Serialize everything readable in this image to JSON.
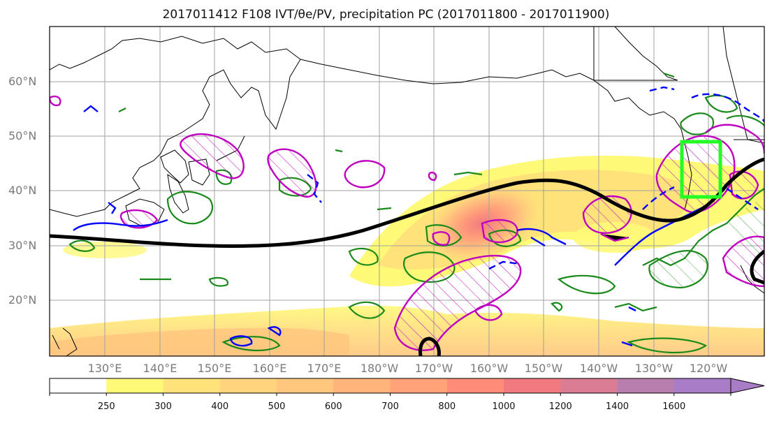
{
  "title": "2017011412 F108 IVT/θe/PV, precipitation PC (2017011800 - 2017011900)",
  "lat_labels": [
    "60°N",
    "50°N",
    "40°N",
    "30°N",
    "20°N"
  ],
  "lon_labels": [
    "130°E",
    "140°E",
    "150°E",
    "160°E",
    "170°E",
    "180°W",
    "170°W",
    "160°W",
    "150°W",
    "140°W",
    "130°W",
    "120°W"
  ],
  "colorbar": {
    "ticks": [
      "250",
      "300",
      "400",
      "500",
      "600",
      "700",
      "800",
      "1000",
      "1200",
      "1400",
      "1600"
    ],
    "colors": [
      "#ffffff",
      "#fff978",
      "#ffe27a",
      "#ffd47c",
      "#ffc67e",
      "#ffb47c",
      "#ffa27a",
      "#ff8c78",
      "#f07a80",
      "#d97c94",
      "#b77eae",
      "#a87cc6"
    ]
  },
  "map_colors": {
    "jet_contour": "#000000",
    "precip_contour": "#1a8a1a",
    "pv_contour": "#c000c0",
    "neg_contour": "#0000ff",
    "target_box": "#22ff22"
  }
}
